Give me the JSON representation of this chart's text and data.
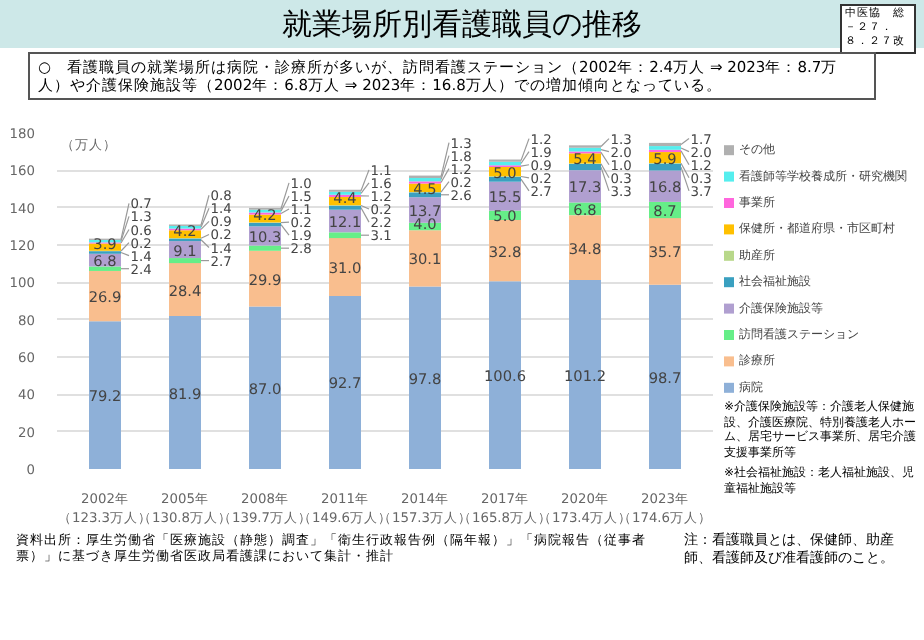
{
  "chart_data": {
    "type": "bar",
    "stacked": true,
    "title": "就業場所別看護職員の推移",
    "ylabel": "（万人）",
    "categories": [
      "2002年（123.3万人）",
      "2005年（130.8万人）",
      "2008年（139.7万人）",
      "2011年（149.6万人）",
      "2014年（157.3万人）",
      "2017年（165.8万人）",
      "2020年（173.4万人）",
      "2023年（174.6万人）"
    ],
    "series": [
      {
        "name": "病院",
        "color": "#8eb0d8",
        "values": [
          79.2,
          81.9,
          87.0,
          92.7,
          97.8,
          100.6,
          101.2,
          98.7
        ],
        "value_labels": [
          "79.2",
          "81.9",
          "87.0",
          "92.7",
          "97.8",
          "100.6",
          "101.2",
          "98.7"
        ]
      },
      {
        "name": "診療所",
        "color": "#f9be8e",
        "values": [
          26.9,
          28.4,
          29.9,
          31.0,
          30.1,
          32.8,
          34.8,
          35.7
        ],
        "value_labels": [
          "26.9",
          "28.4",
          "29.9",
          "31.0",
          "30.1",
          "32.8",
          "34.8",
          "35.7"
        ]
      },
      {
        "name": "訪問看護ステーション",
        "color": "#66ee88",
        "values": [
          2.4,
          2.7,
          2.8,
          3.1,
          4.0,
          5.0,
          6.8,
          8.7
        ],
        "value_labels": [
          "2.4",
          "2.7",
          "2.8",
          "3.1",
          "4.0",
          "5.0",
          "6.8",
          "8.7"
        ]
      },
      {
        "name": "介護保険施設等",
        "color": "#b09fd0",
        "values": [
          6.8,
          9.1,
          10.3,
          12.1,
          13.7,
          15.5,
          17.3,
          16.8
        ],
        "value_labels": [
          "6.8",
          "9.1",
          "10.3",
          "12.1",
          "13.7",
          "15.5",
          "17.3",
          "16.8"
        ]
      },
      {
        "name": "社会福祉施設",
        "color": "#3aa0c0",
        "values": [
          1.4,
          1.4,
          1.9,
          2.2,
          2.6,
          2.7,
          3.3,
          3.7
        ],
        "value_labels": [
          "1.4",
          "1.4",
          "1.9",
          "2.2",
          "2.6",
          "2.7",
          "3.3",
          "3.7"
        ]
      },
      {
        "name": "助産所",
        "color": "#b8d88a",
        "values": [
          0.2,
          0.2,
          0.2,
          0.2,
          0.2,
          0.2,
          0.3,
          0.3
        ],
        "value_labels": [
          "0.2",
          "0.2",
          "0.2",
          "0.2",
          "0.2",
          "0.2",
          "0.3",
          "0.3"
        ]
      },
      {
        "name": "保健所・都道府県・市区町村",
        "color": "#ffc000",
        "values": [
          3.9,
          4.2,
          4.2,
          4.4,
          4.5,
          5.0,
          5.4,
          5.9
        ],
        "value_labels": [
          "3.9",
          "4.2",
          "4.2",
          "4.4",
          "4.5",
          "5.0",
          "5.4",
          "5.9"
        ]
      },
      {
        "name": "事業所",
        "color": "#ff66dd",
        "values": [
          0.6,
          0.9,
          1.1,
          1.2,
          1.2,
          0.9,
          1.0,
          1.2
        ],
        "value_labels": [
          "0.6",
          "0.9",
          "1.1",
          "1.2",
          "1.2",
          "0.9",
          "1.0",
          "1.2"
        ]
      },
      {
        "name": "看護師等学校養成所・研究機関",
        "color": "#55eeee",
        "values": [
          1.3,
          1.4,
          1.5,
          1.6,
          1.8,
          1.9,
          2.0,
          2.0
        ],
        "value_labels": [
          "1.3",
          "1.4",
          "1.5",
          "1.6",
          "1.8",
          "1.9",
          "2.0",
          "2.0"
        ]
      },
      {
        "name": "その他",
        "color": "#b0b0b0",
        "values": [
          0.7,
          0.8,
          1.0,
          1.1,
          1.3,
          1.2,
          1.3,
          1.7
        ],
        "value_labels": [
          "0.7",
          "0.8",
          "1.0",
          "1.1",
          "1.3",
          "1.2",
          "1.3",
          "1.7"
        ]
      }
    ],
    "ylim": [
      0,
      180
    ],
    "yticks": [
      0,
      20,
      40,
      60,
      80,
      100,
      120,
      140,
      160,
      180
    ],
    "grid": "y",
    "legend": "right",
    "annotations": [
      "中医協　総－２７．８．２７改",
      "○　看護職員の就業場所は病院・診療所が多いが、訪問看護ステーション（2002年：2.4万人 ⇒ 2023年：8.7万人）や介護保険施設等（2002年：6.8万人 ⇒ 2023年：16.8万人）での増加傾向となっている。",
      "※介護保険施設等：介護老人保健施設、介護医療院、特別養護老人ホーム、居宅サービス事業所、居宅介護支援事業所等",
      "※社会福祉施設：老人福祉施設、児童福祉施設等",
      "注：看護職員とは、保健師、助産師、看護師及び准看護師のこと。",
      "資料出所：厚生労働省「医療施設（静態）調査」「衛生行政報告例（隔年報）」「病院報告（従事者票）」に基づき厚生労働省医政局看護課において集計・推計"
    ]
  }
}
